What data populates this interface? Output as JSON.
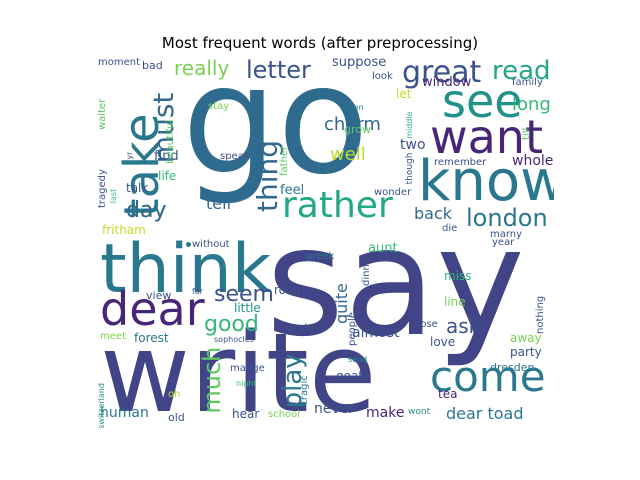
{
  "title": "Most frequent words (after preprocessing)",
  "words": [
    {
      "text": "go",
      "color": "#2f6b8e"
    },
    {
      "text": "say",
      "color": "#414487"
    },
    {
      "text": "write",
      "color": "#414487"
    },
    {
      "text": "think",
      "color": "#2a788e"
    },
    {
      "text": "know",
      "color": "#2a788e"
    },
    {
      "text": "want",
      "color": "#482677"
    },
    {
      "text": "see",
      "color": "#21918c"
    },
    {
      "text": "take",
      "color": "#2a788e"
    },
    {
      "text": "come",
      "color": "#2a788e"
    },
    {
      "text": "dear",
      "color": "#482677"
    },
    {
      "text": "rather",
      "color": "#22a884"
    },
    {
      "text": "great",
      "color": "#3b528b"
    },
    {
      "text": "read",
      "color": "#22a884"
    },
    {
      "text": "london",
      "color": "#2a788e"
    },
    {
      "text": "thing",
      "color": "#31688e"
    },
    {
      "text": "must",
      "color": "#31688e"
    },
    {
      "text": "letter",
      "color": "#3b528b"
    },
    {
      "text": "day",
      "color": "#31688e"
    },
    {
      "text": "much",
      "color": "#5ec962"
    },
    {
      "text": "play",
      "color": "#2a788e"
    },
    {
      "text": "seem",
      "color": "#3b528b"
    },
    {
      "text": "good",
      "color": "#35b779"
    },
    {
      "text": "ask",
      "color": "#3b528b"
    },
    {
      "text": "really",
      "color": "#7ad151"
    },
    {
      "text": "charm",
      "color": "#31688e"
    },
    {
      "text": "well",
      "color": "#bddf26"
    },
    {
      "text": "long",
      "color": "#35b779"
    },
    {
      "text": "quite",
      "color": "#31688e"
    },
    {
      "text": "back",
      "color": "#31688e"
    },
    {
      "text": "tell",
      "color": "#31688e"
    },
    {
      "text": "dear toad",
      "color": "#2a788e"
    },
    {
      "text": "almost",
      "color": "#3b528b"
    },
    {
      "text": "two",
      "color": "#3b528b"
    },
    {
      "text": "whole",
      "color": "#482677"
    },
    {
      "text": "never",
      "color": "#3b528b"
    },
    {
      "text": "make",
      "color": "#482677"
    },
    {
      "text": "human",
      "color": "#2a788e"
    },
    {
      "text": "suppose",
      "color": "#3b528b"
    },
    {
      "text": "window",
      "color": "#482677"
    },
    {
      "text": "aunt",
      "color": "#35b779"
    },
    {
      "text": "feel",
      "color": "#2a788e"
    },
    {
      "text": "find",
      "color": "#3b528b"
    },
    {
      "text": "day",
      "color": "#31688e"
    },
    {
      "text": "fritham",
      "color": "#bddf26"
    },
    {
      "text": "life",
      "color": "#35b779"
    },
    {
      "text": "talk",
      "color": "#3b528b"
    },
    {
      "text": "let",
      "color": "#bddf26"
    },
    {
      "text": "grow",
      "color": "#5ec962"
    },
    {
      "text": "forest",
      "color": "#2a788e"
    },
    {
      "text": "goat",
      "color": "#3b528b"
    },
    {
      "text": "room",
      "color": "#3b528b"
    },
    {
      "text": "line",
      "color": "#7ad151"
    },
    {
      "text": "miss",
      "color": "#35b779"
    },
    {
      "text": "away",
      "color": "#7ad151"
    },
    {
      "text": "party",
      "color": "#3b528b"
    },
    {
      "text": "tea",
      "color": "#482677"
    },
    {
      "text": "love",
      "color": "#3b528b"
    },
    {
      "text": "dresden",
      "color": "#2a788e"
    },
    {
      "text": "view",
      "color": "#3b528b"
    },
    {
      "text": "little",
      "color": "#21918c"
    },
    {
      "text": "bad",
      "color": "#3b528b"
    },
    {
      "text": "moment",
      "color": "#3b528b"
    },
    {
      "text": "look",
      "color": "#3b528b"
    },
    {
      "text": "family",
      "color": "#3b528b"
    },
    {
      "text": "beautiful",
      "color": "#5ec962"
    },
    {
      "text": "walter",
      "color": "#5ec962"
    },
    {
      "text": "stay",
      "color": "#7ad151"
    },
    {
      "text": "even",
      "color": "#2a788e"
    },
    {
      "text": "till",
      "color": "#5ec962"
    },
    {
      "text": "middle",
      "color": "#35b779"
    },
    {
      "text": "father",
      "color": "#5ec962"
    },
    {
      "text": "remember",
      "color": "#3b528b"
    },
    {
      "text": "speak",
      "color": "#3b528b"
    },
    {
      "text": "though",
      "color": "#3b528b"
    },
    {
      "text": "wonder",
      "color": "#3b528b"
    },
    {
      "text": "tragedy",
      "color": "#3b528b"
    },
    {
      "text": "last",
      "color": "#35b779"
    },
    {
      "text": "yr",
      "color": "#3b528b"
    },
    {
      "text": "die",
      "color": "#3b528b"
    },
    {
      "text": "marny",
      "color": "#3b528b"
    },
    {
      "text": "year",
      "color": "#3b528b"
    },
    {
      "text": "greek",
      "color": "#2a788e"
    },
    {
      "text": "dinner",
      "color": "#3b528b"
    },
    {
      "text": "people",
      "color": "#3b528b"
    },
    {
      "text": "without",
      "color": "#3b528b"
    },
    {
      "text": "far",
      "color": "#3b528b"
    },
    {
      "text": "world",
      "color": "#3b528b"
    },
    {
      "text": "sophocles",
      "color": "#3b528b"
    },
    {
      "text": "nothing",
      "color": "#3b528b"
    },
    {
      "text": "nose",
      "color": "#3b528b"
    },
    {
      "text": "meet",
      "color": "#7ad151"
    },
    {
      "text": "switzerland",
      "color": "#21918c"
    },
    {
      "text": "oh",
      "color": "#bddf26"
    },
    {
      "text": "madge",
      "color": "#3b528b"
    },
    {
      "text": "night",
      "color": "#35b779"
    },
    {
      "text": "tragic",
      "color": "#2a788e"
    },
    {
      "text": "send",
      "color": "#21918c"
    },
    {
      "text": "hear",
      "color": "#3b528b"
    },
    {
      "text": "school",
      "color": "#7ad151"
    },
    {
      "text": "old",
      "color": "#3b528b"
    },
    {
      "text": "wont",
      "color": "#21918c"
    }
  ]
}
